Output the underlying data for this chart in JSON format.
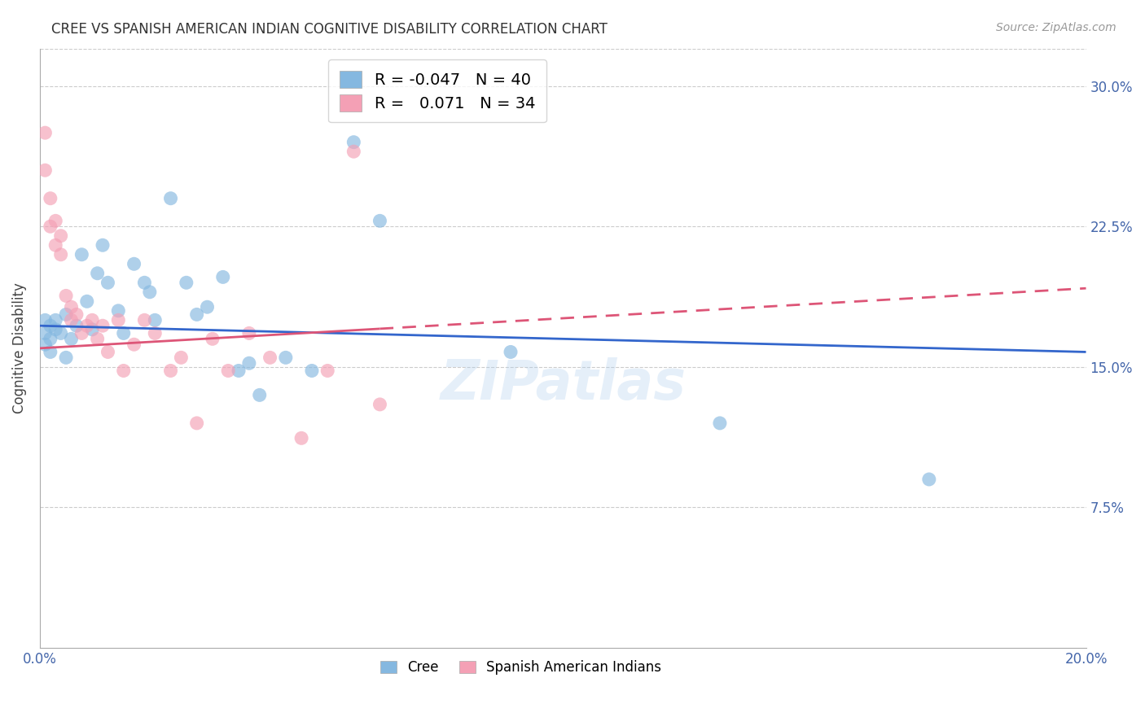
{
  "title": "CREE VS SPANISH AMERICAN INDIAN COGNITIVE DISABILITY CORRELATION CHART",
  "source": "Source: ZipAtlas.com",
  "ylabel": "Cognitive Disability",
  "watermark": "ZIPatlas",
  "cree_label": "Cree",
  "sai_label": "Spanish American Indians",
  "cree_R": -0.047,
  "cree_N": 40,
  "sai_R": 0.071,
  "sai_N": 34,
  "cree_color": "#85b8e0",
  "sai_color": "#f4a0b5",
  "cree_line_color": "#3366cc",
  "sai_line_color": "#dd5577",
  "xlim": [
    0.0,
    0.2
  ],
  "ylim": [
    0.0,
    0.32
  ],
  "xticks": [
    0.0,
    0.05,
    0.1,
    0.15,
    0.2
  ],
  "xticklabels": [
    "0.0%",
    "",
    "",
    "",
    "20.0%"
  ],
  "yticks": [
    0.075,
    0.15,
    0.225,
    0.3
  ],
  "yticklabels": [
    "7.5%",
    "15.0%",
    "22.5%",
    "30.0%"
  ],
  "cree_x": [
    0.001,
    0.001,
    0.001,
    0.002,
    0.002,
    0.002,
    0.003,
    0.003,
    0.004,
    0.005,
    0.005,
    0.006,
    0.007,
    0.008,
    0.009,
    0.01,
    0.011,
    0.012,
    0.013,
    0.015,
    0.016,
    0.018,
    0.02,
    0.021,
    0.022,
    0.025,
    0.028,
    0.03,
    0.032,
    0.035,
    0.038,
    0.04,
    0.042,
    0.047,
    0.052,
    0.06,
    0.065,
    0.09,
    0.13,
    0.17
  ],
  "cree_y": [
    0.175,
    0.168,
    0.162,
    0.172,
    0.165,
    0.158,
    0.175,
    0.17,
    0.168,
    0.178,
    0.155,
    0.165,
    0.172,
    0.21,
    0.185,
    0.17,
    0.2,
    0.215,
    0.195,
    0.18,
    0.168,
    0.205,
    0.195,
    0.19,
    0.175,
    0.24,
    0.195,
    0.178,
    0.182,
    0.198,
    0.148,
    0.152,
    0.135,
    0.155,
    0.148,
    0.27,
    0.228,
    0.158,
    0.12,
    0.09
  ],
  "sai_x": [
    0.001,
    0.001,
    0.002,
    0.002,
    0.003,
    0.003,
    0.004,
    0.004,
    0.005,
    0.006,
    0.006,
    0.007,
    0.008,
    0.009,
    0.01,
    0.011,
    0.012,
    0.013,
    0.015,
    0.016,
    0.018,
    0.02,
    0.022,
    0.025,
    0.027,
    0.03,
    0.033,
    0.036,
    0.04,
    0.044,
    0.05,
    0.055,
    0.06,
    0.065
  ],
  "sai_y": [
    0.255,
    0.275,
    0.24,
    0.225,
    0.228,
    0.215,
    0.21,
    0.22,
    0.188,
    0.182,
    0.175,
    0.178,
    0.168,
    0.172,
    0.175,
    0.165,
    0.172,
    0.158,
    0.175,
    0.148,
    0.162,
    0.175,
    0.168,
    0.148,
    0.155,
    0.12,
    0.165,
    0.148,
    0.168,
    0.155,
    0.112,
    0.148,
    0.265,
    0.13
  ],
  "cree_line_start_y": 0.172,
  "cree_line_end_y": 0.158,
  "sai_line_start_y": 0.16,
  "sai_line_end_y": 0.192,
  "sai_line_data_end_x": 0.065
}
